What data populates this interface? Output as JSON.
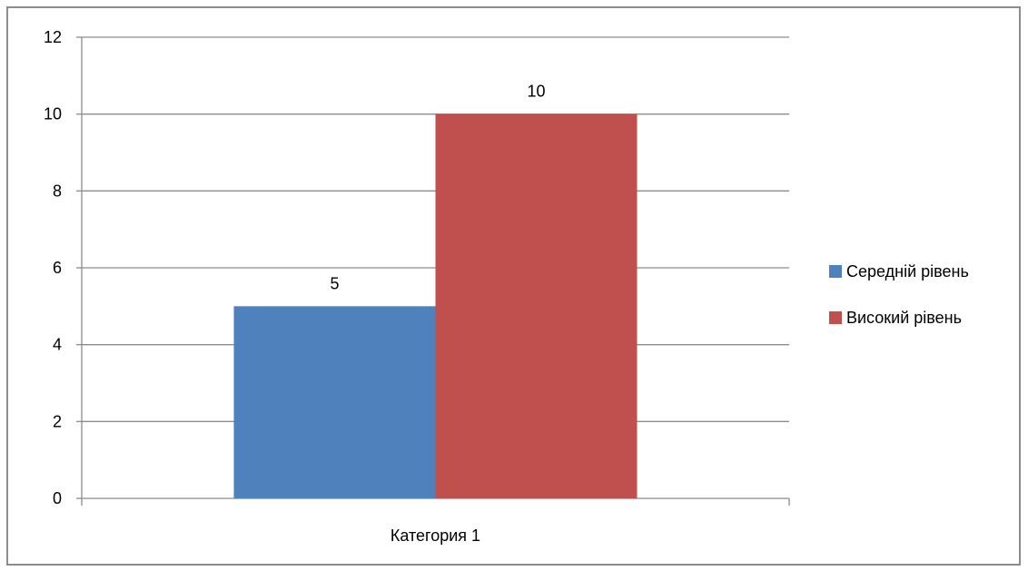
{
  "chart_data": {
    "type": "bar",
    "categories": [
      "Категория 1"
    ],
    "series": [
      {
        "name": "Середній рівень",
        "values": [
          5
        ],
        "color": "#4f81bd"
      },
      {
        "name": "Високий рівень",
        "values": [
          10
        ],
        "color": "#c0504d"
      }
    ],
    "ylim": [
      0,
      12
    ],
    "yticks": [
      0,
      2,
      4,
      6,
      8,
      10,
      12
    ],
    "grid": true,
    "legend_position": "right",
    "data_labels": true,
    "title": "",
    "xlabel": "",
    "ylabel": ""
  }
}
